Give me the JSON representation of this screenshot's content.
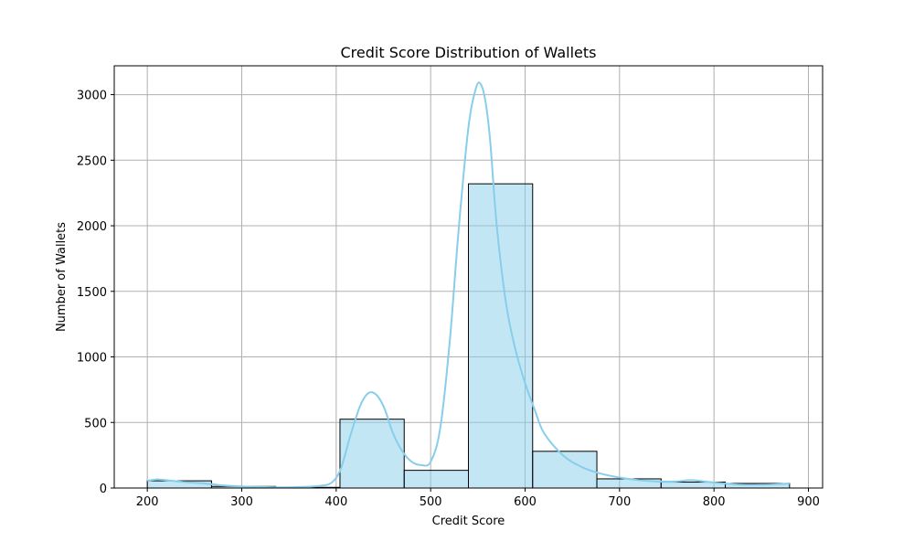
{
  "chart_data": {
    "type": "bar",
    "title": "Credit Score Distribution of Wallets",
    "xlabel": "Credit Score",
    "ylabel": "Number of Wallets",
    "xlim": [
      165,
      915
    ],
    "ylim": [
      0,
      3220
    ],
    "xticks": [
      200,
      300,
      400,
      500,
      600,
      700,
      800,
      900
    ],
    "yticks": [
      0,
      500,
      1000,
      1500,
      2000,
      2500,
      3000
    ],
    "grid": true,
    "bins": [
      {
        "x0": 200,
        "x1": 268,
        "count": 55
      },
      {
        "x0": 268,
        "x1": 336,
        "count": 12
      },
      {
        "x0": 336,
        "x1": 404,
        "count": 5
      },
      {
        "x0": 404,
        "x1": 472,
        "count": 525
      },
      {
        "x0": 472,
        "x1": 540,
        "count": 135
      },
      {
        "x0": 540,
        "x1": 608,
        "count": 2320
      },
      {
        "x0": 608,
        "x1": 676,
        "count": 280
      },
      {
        "x0": 676,
        "x1": 744,
        "count": 70
      },
      {
        "x0": 744,
        "x1": 812,
        "count": 45
      },
      {
        "x0": 812,
        "x1": 880,
        "count": 35
      }
    ],
    "kde": {
      "x": [
        200,
        210,
        220,
        240,
        260,
        280,
        300,
        320,
        340,
        360,
        380,
        395,
        405,
        415,
        425,
        432,
        438,
        445,
        452,
        460,
        470,
        480,
        490,
        500,
        510,
        520,
        530,
        540,
        548,
        553,
        558,
        563,
        570,
        580,
        590,
        600,
        610,
        620,
        640,
        660,
        680,
        700,
        720,
        740,
        760,
        775,
        790,
        810,
        830,
        850,
        870,
        880
      ],
      "y": [
        55,
        65,
        60,
        45,
        35,
        20,
        12,
        8,
        5,
        8,
        15,
        40,
        150,
        400,
        620,
        710,
        730,
        690,
        590,
        420,
        280,
        200,
        175,
        200,
        450,
        1100,
        2000,
        2750,
        3050,
        3080,
        2950,
        2650,
        2000,
        1400,
        1050,
        800,
        600,
        420,
        250,
        160,
        110,
        80,
        60,
        50,
        50,
        60,
        50,
        35,
        25,
        25,
        30,
        35
      ]
    },
    "colors": {
      "bar_fill": "#87ceeb",
      "bar_fill_opacity": "0.5",
      "bar_edge": "#000000",
      "kde_line": "#87ceeb",
      "grid": "#b0b0b0"
    }
  }
}
